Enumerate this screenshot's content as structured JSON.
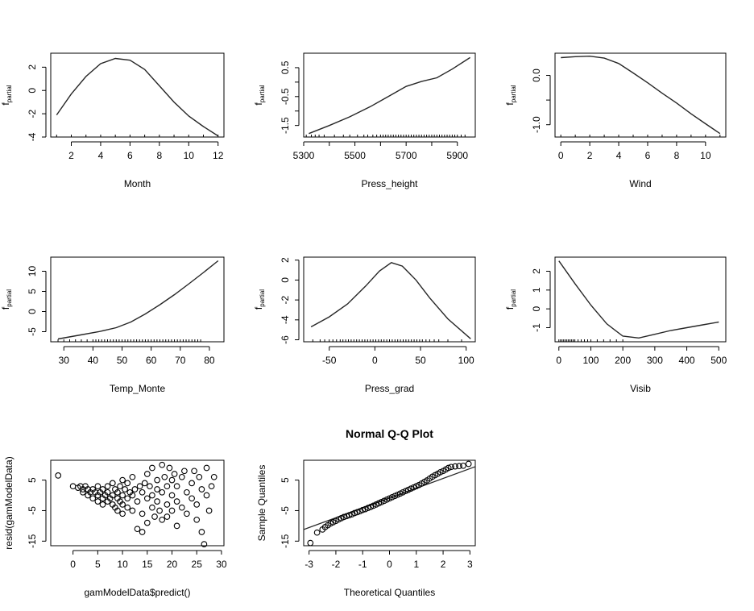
{
  "chart_data": [
    {
      "type": "line",
      "id": "month",
      "xlabel": "Month",
      "ylabel_main": "f",
      "ylabel_sub": "partial",
      "xlim": [
        0.6,
        12.4
      ],
      "ylim": [
        -4,
        3.2
      ],
      "xticks": [
        2,
        4,
        6,
        8,
        10,
        12
      ],
      "xtick_labels": [
        "2",
        "4",
        "6",
        "8",
        "10",
        "12"
      ],
      "yticks": [
        -4,
        -2,
        0,
        2
      ],
      "ytick_labels": [
        "-4",
        "-2",
        "0",
        "2"
      ],
      "x": [
        1,
        2,
        3,
        4,
        5,
        6,
        7,
        8,
        9,
        10,
        11,
        12
      ],
      "y": [
        -2.1,
        -0.3,
        1.2,
        2.3,
        2.75,
        2.6,
        1.8,
        0.4,
        -1.0,
        -2.2,
        -3.1,
        -3.9
      ],
      "rug": [
        1,
        2,
        3,
        4,
        5,
        6,
        7,
        8,
        9,
        10,
        11,
        12
      ]
    },
    {
      "type": "line",
      "id": "press_height",
      "xlabel": "Press_height",
      "ylabel_main": "f",
      "ylabel_sub": "partial",
      "xlim": [
        5300,
        5970
      ],
      "ylim": [
        -1.9,
        1.0
      ],
      "xticks": [
        5300,
        5400,
        5500,
        5600,
        5700,
        5800,
        5900
      ],
      "xtick_labels": [
        "5300",
        "",
        "5500",
        "",
        "5700",
        "",
        "5900"
      ],
      "yticks": [
        -1.5,
        -1.0,
        -0.5,
        0.0,
        0.5
      ],
      "ytick_labels": [
        "-1.5",
        "",
        "-0.5",
        "",
        "0.5"
      ],
      "x": [
        5320,
        5400,
        5480,
        5560,
        5640,
        5700,
        5760,
        5820,
        5880,
        5950
      ],
      "y": [
        -1.78,
        -1.5,
        -1.2,
        -0.85,
        -0.45,
        -0.15,
        0.02,
        0.15,
        0.45,
        0.85
      ],
      "rug": [
        5310,
        5330,
        5345,
        5360,
        5380,
        5420,
        5455,
        5480,
        5510,
        5535,
        5550,
        5570,
        5585,
        5600,
        5610,
        5620,
        5630,
        5640,
        5650,
        5660,
        5670,
        5680,
        5690,
        5700,
        5710,
        5720,
        5730,
        5740,
        5750,
        5760,
        5770,
        5780,
        5790,
        5800,
        5810,
        5820,
        5830,
        5840,
        5850,
        5860,
        5870,
        5880,
        5890,
        5900,
        5915,
        5930
      ]
    },
    {
      "type": "line",
      "id": "wind",
      "xlabel": "Wind",
      "ylabel_main": "f",
      "ylabel_sub": "partial",
      "xlim": [
        -0.4,
        11.4
      ],
      "ylim": [
        -1.25,
        0.45
      ],
      "xticks": [
        0,
        2,
        4,
        6,
        8,
        10
      ],
      "xtick_labels": [
        "0",
        "2",
        "4",
        "6",
        "8",
        "10"
      ],
      "yticks": [
        -1.0,
        -0.5,
        0.0
      ],
      "ytick_labels": [
        "-1.0",
        "",
        "0.0"
      ],
      "x": [
        0,
        1,
        2,
        3,
        4,
        5,
        6,
        7,
        8,
        9,
        10,
        11
      ],
      "y": [
        0.36,
        0.38,
        0.39,
        0.35,
        0.24,
        0.05,
        -0.15,
        -0.36,
        -0.56,
        -0.78,
        -0.98,
        -1.18
      ],
      "rug": [
        0,
        1,
        2,
        3,
        4,
        5,
        6,
        7,
        8,
        9,
        10,
        11
      ]
    },
    {
      "type": "line",
      "id": "temp_monte",
      "xlabel": "Temp_Monte",
      "ylabel_main": "f",
      "ylabel_sub": "partial",
      "xlim": [
        25.5,
        85
      ],
      "ylim": [
        -7.5,
        13.5
      ],
      "xticks": [
        30,
        40,
        50,
        60,
        70,
        80
      ],
      "xtick_labels": [
        "30",
        "40",
        "50",
        "60",
        "70",
        "80"
      ],
      "yticks": [
        -5,
        0,
        5,
        10
      ],
      "ytick_labels": [
        "-5",
        "0",
        "5",
        "10"
      ],
      "x": [
        28,
        35,
        42,
        48,
        53,
        58,
        63,
        68,
        73,
        78,
        83
      ],
      "y": [
        -6.8,
        -5.9,
        -5.0,
        -4.0,
        -2.6,
        -0.6,
        1.7,
        4.2,
        6.9,
        9.7,
        12.6
      ],
      "rug": [
        28,
        30,
        32,
        34,
        36,
        38,
        40,
        41,
        42,
        43,
        44,
        45,
        46,
        47,
        48,
        49,
        50,
        51,
        52,
        53,
        54,
        55,
        56,
        57,
        58,
        59,
        60,
        61,
        62,
        63,
        64,
        65,
        66,
        67,
        68,
        69,
        70,
        71,
        72,
        73,
        74,
        75,
        76,
        77
      ]
    },
    {
      "type": "line",
      "id": "press_grad",
      "xlabel": "Press_grad",
      "ylabel_main": "f",
      "ylabel_sub": "partial",
      "xlim": [
        -78,
        110
      ],
      "ylim": [
        -6.2,
        2.3
      ],
      "xticks": [
        -50,
        0,
        50,
        100
      ],
      "xtick_labels": [
        "-50",
        "0",
        "50",
        "100"
      ],
      "yticks": [
        -6,
        -4,
        -2,
        0,
        2
      ],
      "ytick_labels": [
        "-6",
        "-4",
        "-2",
        "0",
        "2"
      ],
      "x": [
        -70,
        -50,
        -30,
        -10,
        5,
        18,
        30,
        45,
        60,
        80,
        105
      ],
      "y": [
        -4.7,
        -3.7,
        -2.4,
        -0.6,
        0.9,
        1.75,
        1.4,
        0.0,
        -1.8,
        -3.9,
        -5.9
      ],
      "rug": [
        -68,
        -60,
        -55,
        -50,
        -46,
        -42,
        -38,
        -35,
        -32,
        -29,
        -26,
        -23,
        -20,
        -17,
        -14,
        -11,
        -8,
        -5,
        -2,
        1,
        4,
        7,
        10,
        13,
        16,
        19,
        22,
        25,
        28,
        31,
        34,
        37,
        40,
        43,
        46,
        49,
        52,
        56,
        60,
        65,
        70,
        80,
        95
      ]
    },
    {
      "type": "line",
      "id": "visib",
      "xlabel": "Visib",
      "ylabel_main": "f",
      "ylabel_sub": "partial",
      "xlim": [
        -12,
        522
      ],
      "ylim": [
        -1.75,
        2.75
      ],
      "xticks": [
        0,
        100,
        200,
        300,
        400,
        500
      ],
      "xtick_labels": [
        "0",
        "100",
        "200",
        "300",
        "400",
        "500"
      ],
      "yticks": [
        -1,
        0,
        1,
        2
      ],
      "ytick_labels": [
        "-1",
        "0",
        "1",
        "2"
      ],
      "x": [
        0,
        50,
        100,
        150,
        200,
        250,
        300,
        350,
        400,
        450,
        500
      ],
      "y": [
        2.55,
        1.35,
        0.2,
        -0.8,
        -1.45,
        -1.55,
        -1.35,
        -1.15,
        -1.0,
        -0.85,
        -0.7
      ],
      "rug": [
        0,
        5,
        10,
        15,
        20,
        25,
        30,
        35,
        40,
        45,
        50,
        60,
        70,
        80,
        90,
        100,
        120,
        140,
        160,
        180,
        200
      ]
    },
    {
      "type": "scatter",
      "id": "resid",
      "title": "",
      "xlabel": "gamModelData$predict()",
      "ylabel": "resid(gamModelData)",
      "xlim": [
        -4.5,
        30.5
      ],
      "ylim": [
        -16.5,
        11.5
      ],
      "xticks": [
        0,
        5,
        10,
        15,
        20,
        25,
        30
      ],
      "xtick_labels": [
        "0",
        "5",
        "10",
        "15",
        "20",
        "25",
        "30"
      ],
      "yticks": [
        -15,
        -5,
        5
      ],
      "ytick_labels": [
        "-15",
        "-5",
        "5"
      ],
      "points": [
        [
          -3,
          6.5
        ],
        [
          0,
          3
        ],
        [
          1,
          2.5
        ],
        [
          1.5,
          3
        ],
        [
          2,
          2
        ],
        [
          2,
          1
        ],
        [
          2.5,
          3
        ],
        [
          3,
          2
        ],
        [
          3,
          0
        ],
        [
          3.5,
          1
        ],
        [
          4,
          2
        ],
        [
          4,
          -1
        ],
        [
          4.5,
          1
        ],
        [
          5,
          3
        ],
        [
          5,
          0
        ],
        [
          5,
          -2
        ],
        [
          5.5,
          1
        ],
        [
          6,
          2
        ],
        [
          6,
          -1
        ],
        [
          6,
          -3
        ],
        [
          6.5,
          0
        ],
        [
          7,
          3
        ],
        [
          7,
          1
        ],
        [
          7,
          -2
        ],
        [
          7.5,
          -1
        ],
        [
          8,
          4
        ],
        [
          8,
          0
        ],
        [
          8,
          -3
        ],
        [
          8.5,
          2
        ],
        [
          8.5,
          -4
        ],
        [
          9,
          1
        ],
        [
          9,
          -1
        ],
        [
          9,
          -5
        ],
        [
          9.5,
          3
        ],
        [
          9.5,
          -2
        ],
        [
          10,
          5
        ],
        [
          10,
          0
        ],
        [
          10,
          -3
        ],
        [
          10,
          -6
        ],
        [
          10.5,
          2
        ],
        [
          11,
          4
        ],
        [
          11,
          -1
        ],
        [
          11,
          -4
        ],
        [
          11.5,
          1
        ],
        [
          12,
          6
        ],
        [
          12,
          0
        ],
        [
          12,
          -5
        ],
        [
          12.5,
          2
        ],
        [
          13,
          -2
        ],
        [
          13,
          -11
        ],
        [
          13.5,
          3
        ],
        [
          14,
          1
        ],
        [
          14,
          -6
        ],
        [
          14,
          -12
        ],
        [
          14.5,
          4
        ],
        [
          15,
          7
        ],
        [
          15,
          -1
        ],
        [
          15,
          -9
        ],
        [
          15.5,
          3
        ],
        [
          16,
          9
        ],
        [
          16,
          0
        ],
        [
          16,
          -4
        ],
        [
          16.5,
          -7
        ],
        [
          17,
          5
        ],
        [
          17,
          2
        ],
        [
          17,
          -2
        ],
        [
          17.5,
          -5
        ],
        [
          18,
          10
        ],
        [
          18,
          1
        ],
        [
          18,
          -8
        ],
        [
          18.5,
          6
        ],
        [
          19,
          3
        ],
        [
          19,
          -3
        ],
        [
          19,
          -7
        ],
        [
          19.5,
          9
        ],
        [
          20,
          5
        ],
        [
          20,
          0
        ],
        [
          20,
          -5
        ],
        [
          20.5,
          7
        ],
        [
          21,
          3
        ],
        [
          21,
          -2
        ],
        [
          21,
          -10
        ],
        [
          22,
          6
        ],
        [
          22,
          -4
        ],
        [
          22.5,
          8
        ],
        [
          23,
          1
        ],
        [
          23,
          -6
        ],
        [
          24,
          4
        ],
        [
          24,
          -1
        ],
        [
          24.5,
          8
        ],
        [
          25,
          -3
        ],
        [
          25,
          -8
        ],
        [
          25.5,
          6
        ],
        [
          26,
          2
        ],
        [
          26,
          -12
        ],
        [
          26.5,
          -16
        ],
        [
          27,
          9
        ],
        [
          27,
          0
        ],
        [
          27.5,
          -5
        ],
        [
          28,
          3
        ],
        [
          28.5,
          6
        ]
      ]
    },
    {
      "type": "scatter",
      "id": "qq",
      "title": "Normal Q-Q Plot",
      "xlabel": "Theoretical Quantiles",
      "ylabel": "Sample Quantiles",
      "xlim": [
        -3.2,
        3.2
      ],
      "ylim": [
        -16.5,
        11.5
      ],
      "xticks": [
        -3,
        -2,
        -1,
        0,
        1,
        2,
        3
      ],
      "xtick_labels": [
        "-3",
        "-2",
        "-1",
        "0",
        "1",
        "2",
        "3"
      ],
      "yticks": [
        -15,
        -5,
        5
      ],
      "ytick_labels": [
        "-15",
        "-5",
        "5"
      ],
      "refline": [
        [
          -3.2,
          -11.2
        ],
        [
          3.2,
          9.4
        ]
      ],
      "points": [
        [
          -2.95,
          -15.6
        ],
        [
          -2.7,
          -12.2
        ],
        [
          -2.5,
          -11.2
        ],
        [
          -2.4,
          -10.4
        ],
        [
          -2.3,
          -9.8
        ],
        [
          -2.2,
          -9.2
        ],
        [
          -2.1,
          -8.8
        ],
        [
          -2.0,
          -8.4
        ],
        [
          -1.9,
          -7.9
        ],
        [
          -1.8,
          -7.5
        ],
        [
          -1.7,
          -7.1
        ],
        [
          -1.6,
          -6.8
        ],
        [
          -1.5,
          -6.5
        ],
        [
          -1.4,
          -6.2
        ],
        [
          -1.3,
          -5.8
        ],
        [
          -1.2,
          -5.5
        ],
        [
          -1.1,
          -5.2
        ],
        [
          -1.0,
          -4.8
        ],
        [
          -0.9,
          -4.5
        ],
        [
          -0.8,
          -4.1
        ],
        [
          -0.7,
          -3.8
        ],
        [
          -0.6,
          -3.4
        ],
        [
          -0.5,
          -3.0
        ],
        [
          -0.4,
          -2.6
        ],
        [
          -0.3,
          -2.2
        ],
        [
          -0.2,
          -1.8
        ],
        [
          -0.1,
          -1.4
        ],
        [
          0.0,
          -1.0
        ],
        [
          0.1,
          -0.6
        ],
        [
          0.2,
          -0.2
        ],
        [
          0.3,
          0.2
        ],
        [
          0.4,
          0.6
        ],
        [
          0.5,
          1.0
        ],
        [
          0.6,
          1.4
        ],
        [
          0.7,
          1.8
        ],
        [
          0.8,
          2.2
        ],
        [
          0.9,
          2.6
        ],
        [
          1.0,
          3.0
        ],
        [
          1.1,
          3.4
        ],
        [
          1.2,
          3.9
        ],
        [
          1.3,
          4.4
        ],
        [
          1.4,
          4.9
        ],
        [
          1.5,
          5.5
        ],
        [
          1.6,
          6.1
        ],
        [
          1.7,
          6.6
        ],
        [
          1.8,
          7.1
        ],
        [
          1.9,
          7.6
        ],
        [
          2.0,
          8.0
        ],
        [
          2.1,
          8.5
        ],
        [
          2.2,
          9.0
        ],
        [
          2.3,
          9.3
        ],
        [
          2.45,
          9.5
        ],
        [
          2.6,
          9.6
        ],
        [
          2.75,
          9.7
        ],
        [
          2.95,
          10.3
        ]
      ]
    }
  ]
}
